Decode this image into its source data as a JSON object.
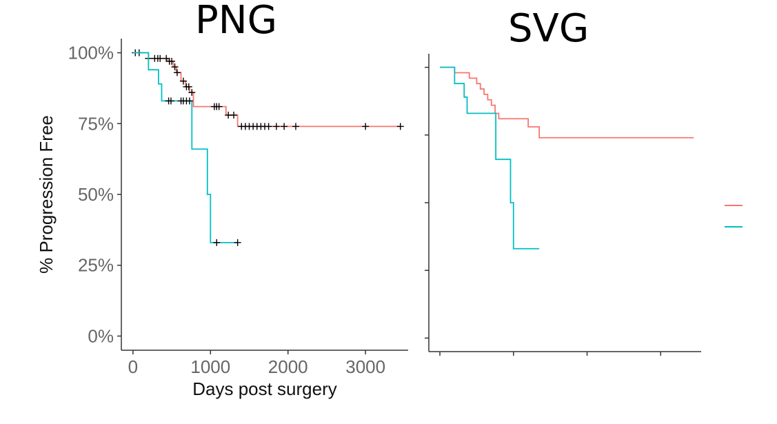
{
  "panels": {
    "left_title": "PNG",
    "right_title": "SVG"
  },
  "colors": {
    "series_a": "#F8766D",
    "series_b": "#00BFC4",
    "censor": "#000000"
  },
  "chart_data": [
    {
      "type": "line",
      "step": true,
      "title": "PNG",
      "xlabel": "Days post surgery",
      "ylabel": "% Progression Free",
      "xlim": [
        -150,
        3550
      ],
      "ylim": [
        -0.05,
        1.05
      ],
      "xticks": [
        0,
        1000,
        2000,
        3000
      ],
      "xtick_labels": [
        "0",
        "1000",
        "2000",
        "3000"
      ],
      "yticks": [
        0,
        0.25,
        0.5,
        0.75,
        1.0
      ],
      "ytick_labels": [
        "0%",
        "25%",
        "50%",
        "75%",
        "100%"
      ],
      "grid": false,
      "series": [
        {
          "color": "#F8766D",
          "x": [
            0,
            200,
            450,
            520,
            560,
            620,
            680,
            730,
            780,
            1050,
            1200,
            1350,
            3450
          ],
          "y": [
            1.0,
            0.98,
            0.97,
            0.95,
            0.93,
            0.9,
            0.88,
            0.86,
            0.81,
            0.81,
            0.78,
            0.74,
            0.74
          ],
          "censor_x": [
            30,
            80,
            200,
            280,
            320,
            350,
            430,
            470,
            500,
            540,
            570,
            650,
            690,
            720,
            760,
            1050,
            1080,
            1110,
            1230,
            1300,
            1400,
            1450,
            1500,
            1550,
            1600,
            1650,
            1700,
            1750,
            1850,
            1950,
            2100,
            3000,
            3450
          ]
        },
        {
          "color": "#00BFC4",
          "x": [
            0,
            200,
            330,
            370,
            760,
            960,
            1000,
            1350
          ],
          "y": [
            1.0,
            0.94,
            0.89,
            0.83,
            0.66,
            0.5,
            0.33,
            0.33
          ],
          "censor_x": [
            460,
            490,
            620,
            650,
            690,
            730,
            1080,
            1350
          ]
        }
      ]
    },
    {
      "type": "line",
      "step": true,
      "title": "SVG",
      "xlim": [
        -150,
        3550
      ],
      "ylim": [
        -0.05,
        1.05
      ],
      "xticks": [
        0,
        1000,
        2000,
        3000
      ],
      "yticks": [
        0,
        0.25,
        0.5,
        0.75,
        1.0
      ],
      "grid": false,
      "legend": "right",
      "series": [
        {
          "color": "#F8766D",
          "x": [
            0,
            200,
            400,
            500,
            550,
            600,
            650,
            700,
            750,
            800,
            1050,
            1200,
            1350,
            3450
          ],
          "y": [
            1.0,
            0.98,
            0.96,
            0.94,
            0.92,
            0.9,
            0.88,
            0.86,
            0.83,
            0.81,
            0.81,
            0.78,
            0.74,
            0.74
          ]
        },
        {
          "color": "#00BFC4",
          "x": [
            0,
            200,
            330,
            370,
            760,
            960,
            1000,
            1350
          ],
          "y": [
            1.0,
            0.94,
            0.89,
            0.83,
            0.66,
            0.5,
            0.33,
            0.33
          ]
        }
      ]
    }
  ]
}
